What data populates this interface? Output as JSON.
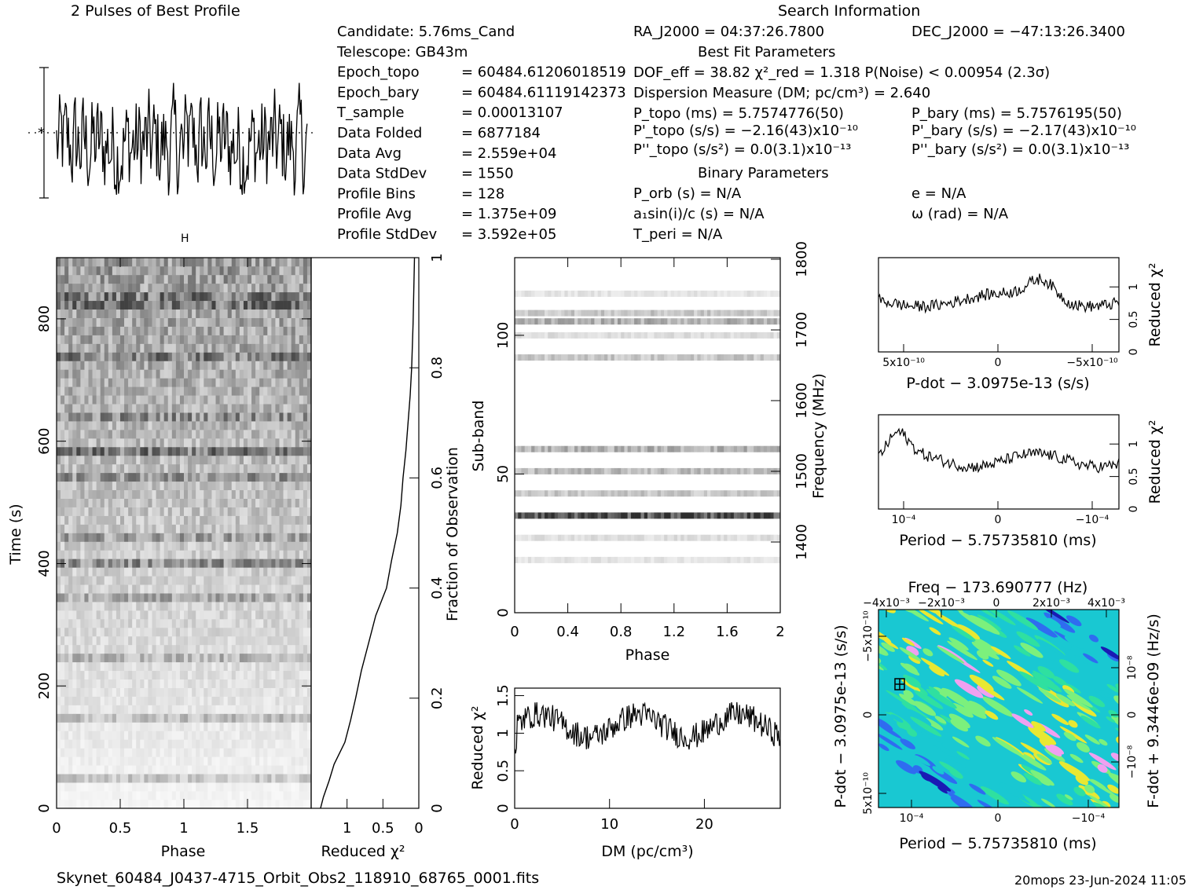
{
  "header": {
    "profile_title": "2 Pulses of Best Profile",
    "search_title": "Search Information",
    "best_fit_title": "Best Fit Parameters",
    "binary_title": "Binary Parameters"
  },
  "info_left": [
    {
      "label": "Candidate:  5.76ms_Cand",
      "value": ""
    },
    {
      "label": "Telescope:  GB43m",
      "value": ""
    },
    {
      "label": "Epoch_topo",
      "value": "= 60484.61206018519"
    },
    {
      "label": "Epoch_bary",
      "value": "= 60484.61119142373"
    },
    {
      "label": "T_sample",
      "value": "=   0.00013107"
    },
    {
      "label": "Data Folded",
      "value": "=   6877184"
    },
    {
      "label": "Data Avg",
      "value": "=   2.559e+04"
    },
    {
      "label": "Data StdDev",
      "value": "=   1550"
    },
    {
      "label": "Profile Bins",
      "value": "=   128"
    },
    {
      "label": "Profile Avg",
      "value": "=   1.375e+09"
    },
    {
      "label": "Profile StdDev",
      "value": "=   3.592e+05"
    }
  ],
  "info_mid": {
    "ra": "RA_J2000 = 04:37:26.7800",
    "dof": "DOF_eff = 38.82  χ²_red = 1.318  P(Noise) < 0.00954  (2.3σ)",
    "dm": "Dispersion Measure (DM; pc/cm³) = 2.640",
    "p_topo": "P_topo (ms) =  5.7574776(50)",
    "pd_topo": "P'_topo (s/s) = −2.16(43)x10⁻¹⁰",
    "pdd_topo": "P''_topo (s/s²) = 0.0(3.1)x10⁻¹³",
    "p_orb": "P_orb (s) = N/A",
    "a1": "a₁sin(i)/c (s) = N/A",
    "t_peri": "T_peri = N/A"
  },
  "info_right": {
    "dec": "DEC_J2000 = −47:13:26.3400",
    "p_bary": "P_bary (ms) =  5.7576195(50)",
    "pd_bary": "P'_bary (s/s) = −2.17(43)x10⁻¹⁰",
    "pdd_bary": "P''_bary (s/s²) = 0.0(3.1)x10⁻¹³",
    "e": "e = N/A",
    "omega": "ω (rad) = N/A"
  },
  "footer": {
    "filename": "Skynet_60484_J0437-4715_Orbit_Obs2_118910_68765_0001.fits",
    "stamp": "20mops 23-Jun-2024 11:05"
  },
  "chart_data": [
    {
      "type": "line",
      "name": "profile",
      "title": "2 Pulses of Best Profile",
      "xlim": [
        0,
        2
      ],
      "bins": 128
    },
    {
      "type": "heatmap",
      "name": "time-phase",
      "xlabel": "Phase",
      "ylabel": "Time (s)",
      "xlim": [
        0,
        2
      ],
      "ylim": [
        0,
        900
      ],
      "xticks": [
        "0",
        "0.5",
        "1",
        "1.5"
      ],
      "yticks": [
        "0",
        "200",
        "400",
        "600",
        "800"
      ]
    },
    {
      "type": "line",
      "name": "fraction-reduced-chi2",
      "xlabel": "Reduced χ²",
      "ylabel": "Fraction of Observation",
      "xticks": [
        "1",
        "0.5",
        "0"
      ],
      "yticks": [
        "0",
        "0.2",
        "0.4",
        "0.6",
        "0.8",
        "1"
      ],
      "x": [
        1.37,
        1.33,
        1.25,
        1.18,
        1.03,
        0.95,
        0.88,
        0.8,
        0.7,
        0.6,
        0.45,
        0.38,
        0.3,
        0.25,
        0.22,
        0.18,
        0.15,
        0.12,
        0.1,
        0.08,
        0.06
      ],
      "y": [
        0.0,
        0.02,
        0.05,
        0.08,
        0.12,
        0.16,
        0.2,
        0.25,
        0.3,
        0.35,
        0.4,
        0.45,
        0.5,
        0.55,
        0.6,
        0.65,
        0.7,
        0.75,
        0.8,
        0.88,
        1.0
      ]
    },
    {
      "type": "heatmap",
      "name": "subband-phase",
      "xlabel": "Phase",
      "ylabel": "Sub-band",
      "ylabel2": "Frequency (MHz)",
      "xticks": [
        "0",
        "0.4",
        "0.8",
        "1.2",
        "1.6",
        "2"
      ],
      "yticks": [
        "0",
        "50",
        "100"
      ],
      "yticks2": [
        "1400",
        "1500",
        "1600",
        "1700",
        "1800"
      ],
      "bands": [
        {
          "subband": 19,
          "intensity": 0.12
        },
        {
          "subband": 27,
          "intensity": 0.15
        },
        {
          "subband": 35,
          "intensity": 0.85
        },
        {
          "subband": 43,
          "intensity": 0.25
        },
        {
          "subband": 51,
          "intensity": 0.3
        },
        {
          "subband": 59,
          "intensity": 0.35
        },
        {
          "subband": 92,
          "intensity": 0.25
        },
        {
          "subband": 100,
          "intensity": 0.15
        },
        {
          "subband": 105,
          "intensity": 0.35
        },
        {
          "subband": 108,
          "intensity": 0.25
        },
        {
          "subband": 115,
          "intensity": 0.12
        }
      ]
    },
    {
      "type": "line",
      "name": "dm-reduced-chi2",
      "xlabel": "DM (pc/cm³)",
      "ylabel": "Reduced χ²",
      "xticks": [
        "0",
        "10",
        "20"
      ],
      "yticks": [
        "0",
        "0.5",
        "1",
        "1.5"
      ],
      "xlim": [
        0,
        28
      ],
      "ylim": [
        0,
        1.6
      ]
    },
    {
      "type": "line",
      "name": "pdot-reduced-chi2",
      "xlabel": "P-dot − 3.0975e-13 (s/s)",
      "ylabel": "Reduced χ²",
      "xticks": [
        "5x10⁻¹⁰",
        "0",
        "−5x10⁻¹⁰"
      ],
      "yticks": [
        "0",
        "0.5",
        "1"
      ]
    },
    {
      "type": "line",
      "name": "period-reduced-chi2",
      "xlabel": "Period − 5.75735810 (ms)",
      "ylabel": "Reduced χ²",
      "xticks": [
        "10⁻⁴",
        "0",
        "−10⁻⁴"
      ],
      "yticks": [
        "0",
        "0.5",
        "1"
      ]
    },
    {
      "type": "heatmap",
      "name": "period-pdot",
      "title": "Freq − 173.690777 (Hz)",
      "xlabel": "Period − 5.75735810 (ms)",
      "ylabel": "P-dot − 3.0975e-13 (s/s)",
      "ylabel2": "F-dot + 9.3446e-09 (Hz/s)",
      "xticks": [
        "10⁻⁴",
        "0",
        "−10⁻⁴"
      ],
      "xticks_top": [
        "−4x10⁻³",
        "−2x10⁻³",
        "0",
        "2x10⁻³",
        "4x10⁻³"
      ],
      "yticks": [
        "5x10⁻¹⁰",
        "0",
        "−5x10⁻¹⁰"
      ],
      "yticks2": [
        "−10⁻⁸",
        "0",
        "10⁻⁸"
      ],
      "colors": [
        "#1a1ab4",
        "#2f6cf0",
        "#19c8d2",
        "#2fe0a0",
        "#7cf07c",
        "#e8e832",
        "#f0a0f0"
      ]
    }
  ]
}
